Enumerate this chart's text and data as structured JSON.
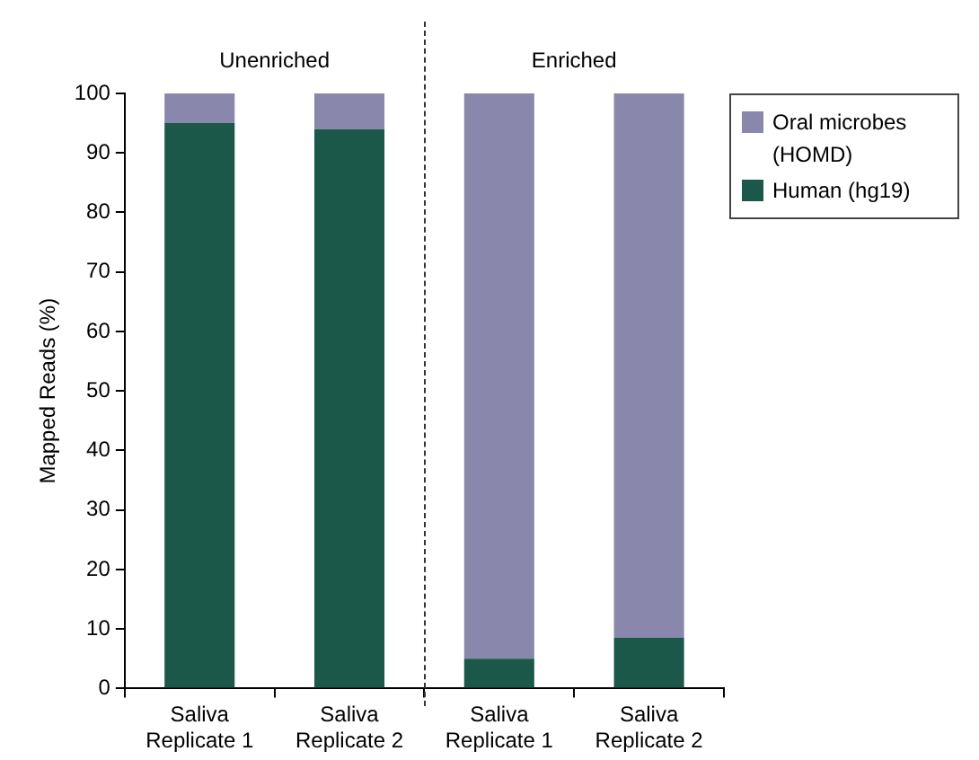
{
  "chart_data": {
    "type": "bar",
    "stacked": true,
    "categories": [
      "Saliva Replicate 1",
      "Saliva Replicate 2",
      "Saliva Replicate 1",
      "Saliva Replicate 2"
    ],
    "series": [
      {
        "name": "Human (hg19)",
        "color": "#1b5849",
        "values": [
          95,
          94,
          5,
          8.5
        ]
      },
      {
        "name": "Oral microbes (HOMD)",
        "color": "#8987ab",
        "values": [
          5,
          6,
          95,
          91.5
        ]
      }
    ],
    "ylabel": "Mapped Reads (%)",
    "ylim": [
      0,
      100
    ],
    "yticks": [
      0,
      10,
      20,
      30,
      40,
      50,
      60,
      70,
      80,
      90,
      100
    ],
    "grid": false,
    "legend": "top right",
    "annotations": [
      "Unenriched",
      "Enriched"
    ]
  }
}
